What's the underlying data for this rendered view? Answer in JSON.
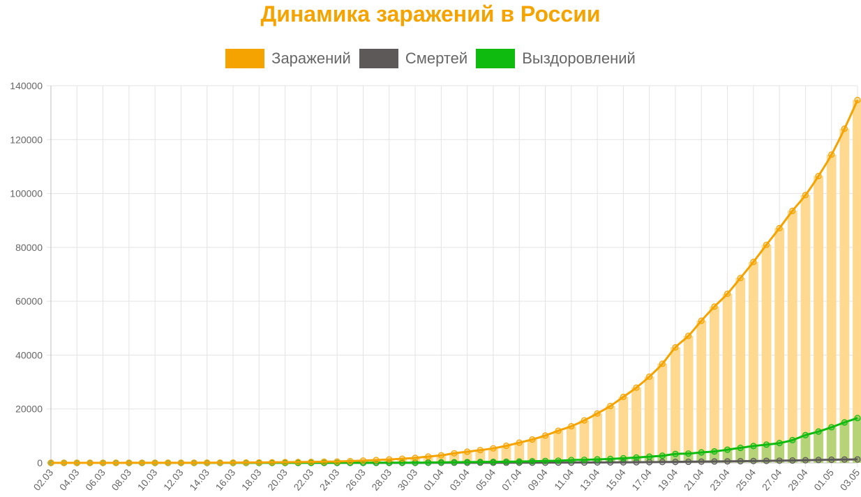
{
  "chart_data": {
    "type": "bar",
    "title": "Динамика заражений в России",
    "x": [
      "02.03",
      "03.03",
      "04.03",
      "05.03",
      "06.03",
      "07.03",
      "08.03",
      "09.03",
      "10.03",
      "11.03",
      "12.03",
      "13.03",
      "14.03",
      "15.03",
      "16.03",
      "17.03",
      "18.03",
      "19.03",
      "20.03",
      "21.03",
      "22.03",
      "23.03",
      "24.03",
      "25.03",
      "26.03",
      "27.03",
      "28.03",
      "29.03",
      "30.03",
      "31.03",
      "01.04",
      "02.04",
      "03.04",
      "04.04",
      "05.04",
      "06.04",
      "07.04",
      "08.04",
      "09.04",
      "10.04",
      "11.04",
      "12.04",
      "13.04",
      "14.04",
      "15.04",
      "16.04",
      "17.04",
      "18.04",
      "19.04",
      "20.04",
      "21.04",
      "22.04",
      "23.04",
      "24.04",
      "25.04",
      "26.04",
      "27.04",
      "28.04",
      "29.04",
      "30.04",
      "01.05",
      "02.05",
      "03.05"
    ],
    "x_tick_labels_shown": [
      "02.03",
      "04.03",
      "06.03",
      "08.03",
      "10.03",
      "12.03",
      "14.03",
      "16.03",
      "18.03",
      "20.03",
      "22.03",
      "24.03",
      "26.03",
      "28.03",
      "30.03",
      "01.04",
      "03.04",
      "05.04",
      "07.04",
      "09.04",
      "11.04",
      "13.04",
      "15.04",
      "17.04",
      "19.04",
      "21.04",
      "23.04",
      "25.04",
      "27.04",
      "29.04",
      "01.05",
      "03.05"
    ],
    "ylim": [
      0,
      140000
    ],
    "y_ticks": [
      0,
      20000,
      40000,
      60000,
      80000,
      100000,
      120000,
      140000
    ],
    "grid": true,
    "legend_position": "top-center",
    "series": [
      {
        "name": "Заражений",
        "color": "#f5a300",
        "bar_color": "#ffd98f",
        "render": "bars+line",
        "values": [
          3,
          3,
          4,
          4,
          10,
          10,
          17,
          17,
          20,
          28,
          34,
          45,
          59,
          63,
          93,
          114,
          147,
          199,
          253,
          306,
          367,
          438,
          495,
          658,
          840,
          1036,
          1264,
          1534,
          1836,
          2337,
          2777,
          3548,
          4149,
          4731,
          5389,
          6343,
          7497,
          8672,
          10131,
          11917,
          13584,
          15770,
          18328,
          21102,
          24490,
          27938,
          32008,
          36793,
          42853,
          47121,
          52763,
          57999,
          62773,
          68622,
          74588,
          80949,
          87147,
          93558,
          99399,
          106498,
          114431,
          124054,
          134687
        ]
      },
      {
        "name": "Смертей",
        "color": "#5d5959",
        "render": "line",
        "values": [
          0,
          0,
          0,
          0,
          0,
          0,
          0,
          0,
          0,
          0,
          0,
          0,
          0,
          0,
          0,
          0,
          0,
          1,
          1,
          1,
          1,
          1,
          2,
          3,
          3,
          4,
          4,
          8,
          9,
          17,
          24,
          30,
          34,
          43,
          45,
          47,
          58,
          63,
          76,
          94,
          106,
          130,
          148,
          170,
          198,
          232,
          273,
          313,
          361,
          405,
          456,
          513,
          555,
          615,
          681,
          747,
          794,
          867,
          972,
          1073,
          1169,
          1222,
          1280
        ]
      },
      {
        "name": "Выздоровлений",
        "color": "#10bb10",
        "bar_color": "#9fd070",
        "render": "bars+line",
        "values": [
          0,
          0,
          0,
          0,
          0,
          0,
          0,
          0,
          0,
          0,
          0,
          0,
          0,
          0,
          2,
          5,
          5,
          7,
          9,
          9,
          16,
          17,
          22,
          29,
          38,
          49,
          64,
          66,
          66,
          121,
          190,
          235,
          281,
          333,
          355,
          406,
          494,
          580,
          698,
          794,
          1045,
          1116,
          1291,
          1470,
          1694,
          1986,
          2304,
          2649,
          3291,
          3446,
          3873,
          4229,
          4891,
          5568,
          6250,
          6767,
          7346,
          8456,
          10286,
          11619,
          13220,
          15013,
          16639
        ]
      }
    ]
  }
}
